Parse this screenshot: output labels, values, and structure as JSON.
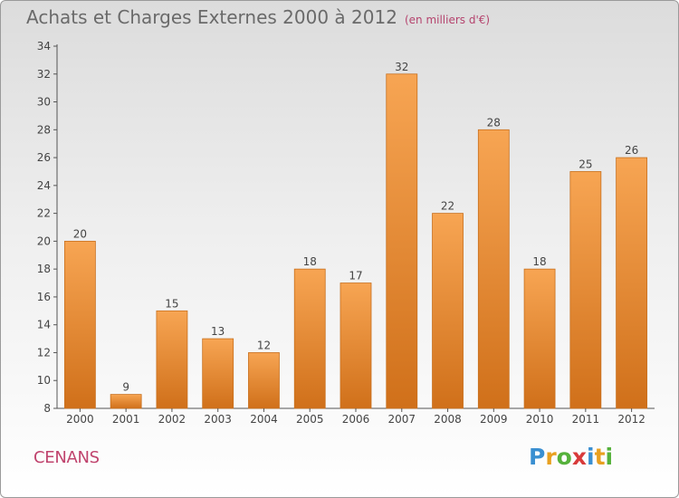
{
  "title": "Achats et Charges Externes 2000 à 2012",
  "subtitle": "(en milliers d'€)",
  "commune": "CENANS",
  "logo": {
    "text": "Proxiti",
    "letters": [
      {
        "ch": "P",
        "color": "#3a8fd1"
      },
      {
        "ch": "r",
        "color": "#e8a020"
      },
      {
        "ch": "o",
        "color": "#55b13b"
      },
      {
        "ch": "x",
        "color": "#d83a3a"
      },
      {
        "ch": "i",
        "color": "#3a8fd1"
      },
      {
        "ch": "t",
        "color": "#e8a020"
      },
      {
        "ch": "i",
        "color": "#55b13b"
      }
    ]
  },
  "colors": {
    "bar_top": "#f7a553",
    "bar_bottom": "#d0701a",
    "bar_edge": "#c8701e",
    "axis": "#555555",
    "grid": "#cccccc",
    "text": "#444444"
  },
  "chart_data": {
    "type": "bar",
    "categories": [
      "2000",
      "2001",
      "2002",
      "2003",
      "2004",
      "2005",
      "2006",
      "2007",
      "2008",
      "2009",
      "2010",
      "2011",
      "2012"
    ],
    "values": [
      20,
      9,
      15,
      13,
      12,
      18,
      17,
      32,
      22,
      28,
      18,
      25,
      26
    ],
    "ylim": [
      8,
      34
    ],
    "yticks": [
      8,
      10,
      12,
      14,
      16,
      18,
      20,
      22,
      24,
      26,
      28,
      30,
      32,
      34
    ],
    "data_labels": true,
    "grid": false
  }
}
